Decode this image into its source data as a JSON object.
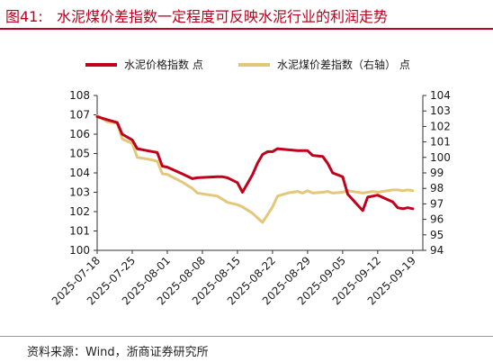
{
  "header": {
    "figure_label": "图41:",
    "title": "水泥煤价差指数一定程度可反映水泥行业的利润走势"
  },
  "footer": {
    "source": "资料来源：Wind，浙商证券研究所"
  },
  "chart_data": {
    "type": "line",
    "title": "",
    "xlabel": "",
    "ylabel": "",
    "y2label": "",
    "legend_position": "top",
    "x_tick_labels": [
      "2025-07-18",
      "2025-07-25",
      "2025-08-01",
      "2025-08-08",
      "2025-08-15",
      "2025-08-22",
      "2025-08-29",
      "2025-09-05",
      "2025-09-12",
      "2025-09-19"
    ],
    "x_range": [
      "2025-07-18",
      "2025-09-21"
    ],
    "ylim_left": [
      100,
      108
    ],
    "yticks_left": [
      100,
      101,
      102,
      103,
      104,
      105,
      106,
      107,
      108
    ],
    "ylim_right": [
      94,
      104
    ],
    "yticks_right": [
      94,
      95,
      96,
      97,
      98,
      99,
      100,
      101,
      102,
      103,
      104
    ],
    "grid": false,
    "series": [
      {
        "name": "水泥价格指数 点",
        "axis": "left",
        "color": "#c0001c",
        "x": [
          "2025-07-18",
          "2025-07-20",
          "2025-07-22",
          "2025-07-23",
          "2025-07-25",
          "2025-07-26",
          "2025-07-28",
          "2025-07-30",
          "2025-07-31",
          "2025-08-01",
          "2025-08-04",
          "2025-08-06",
          "2025-08-07",
          "2025-08-11",
          "2025-08-12",
          "2025-08-13",
          "2025-08-15",
          "2025-08-16",
          "2025-08-18",
          "2025-08-19",
          "2025-08-20",
          "2025-08-21",
          "2025-08-22",
          "2025-08-23",
          "2025-08-25",
          "2025-08-27",
          "2025-08-28",
          "2025-08-29",
          "2025-08-30",
          "2025-09-01",
          "2025-09-02",
          "2025-09-03",
          "2025-09-05",
          "2025-09-06",
          "2025-09-09",
          "2025-09-10",
          "2025-09-11",
          "2025-09-12",
          "2025-09-15",
          "2025-09-16",
          "2025-09-17",
          "2025-09-18",
          "2025-09-19"
        ],
        "values": [
          106.9,
          106.75,
          106.6,
          106.0,
          105.7,
          105.25,
          105.15,
          105.05,
          104.35,
          104.3,
          103.95,
          103.7,
          103.75,
          103.8,
          103.8,
          103.75,
          103.5,
          103.0,
          103.9,
          104.5,
          104.95,
          105.1,
          105.1,
          105.25,
          105.2,
          105.15,
          105.15,
          105.15,
          104.9,
          104.85,
          104.5,
          104.0,
          103.8,
          102.9,
          102.05,
          102.75,
          102.8,
          102.85,
          102.5,
          102.2,
          102.15,
          102.2,
          102.15
        ]
      },
      {
        "name": "水泥煤价差指数（右轴） 点",
        "axis": "right",
        "color": "#e3c77a",
        "x": [
          "2025-07-18",
          "2025-07-20",
          "2025-07-22",
          "2025-07-23",
          "2025-07-25",
          "2025-07-26",
          "2025-07-28",
          "2025-07-30",
          "2025-07-31",
          "2025-08-01",
          "2025-08-04",
          "2025-08-06",
          "2025-08-07",
          "2025-08-11",
          "2025-08-12",
          "2025-08-13",
          "2025-08-15",
          "2025-08-16",
          "2025-08-18",
          "2025-08-19",
          "2025-08-20",
          "2025-08-21",
          "2025-08-22",
          "2025-08-23",
          "2025-08-25",
          "2025-08-27",
          "2025-08-28",
          "2025-08-29",
          "2025-08-30",
          "2025-09-01",
          "2025-09-02",
          "2025-09-03",
          "2025-09-05",
          "2025-09-06",
          "2025-09-09",
          "2025-09-10",
          "2025-09-11",
          "2025-09-12",
          "2025-09-15",
          "2025-09-16",
          "2025-09-17",
          "2025-09-18",
          "2025-09-19"
        ],
        "values": [
          102.7,
          102.3,
          102.2,
          101.2,
          100.9,
          100.0,
          99.9,
          99.75,
          98.95,
          98.9,
          98.4,
          98.0,
          97.7,
          97.5,
          97.3,
          97.1,
          96.95,
          96.8,
          96.4,
          96.1,
          95.8,
          96.3,
          96.8,
          97.5,
          97.7,
          97.8,
          97.7,
          97.85,
          97.7,
          97.75,
          97.8,
          97.7,
          97.75,
          97.85,
          97.7,
          97.75,
          97.8,
          97.75,
          97.9,
          97.9,
          97.85,
          97.9,
          97.85
        ]
      }
    ]
  }
}
